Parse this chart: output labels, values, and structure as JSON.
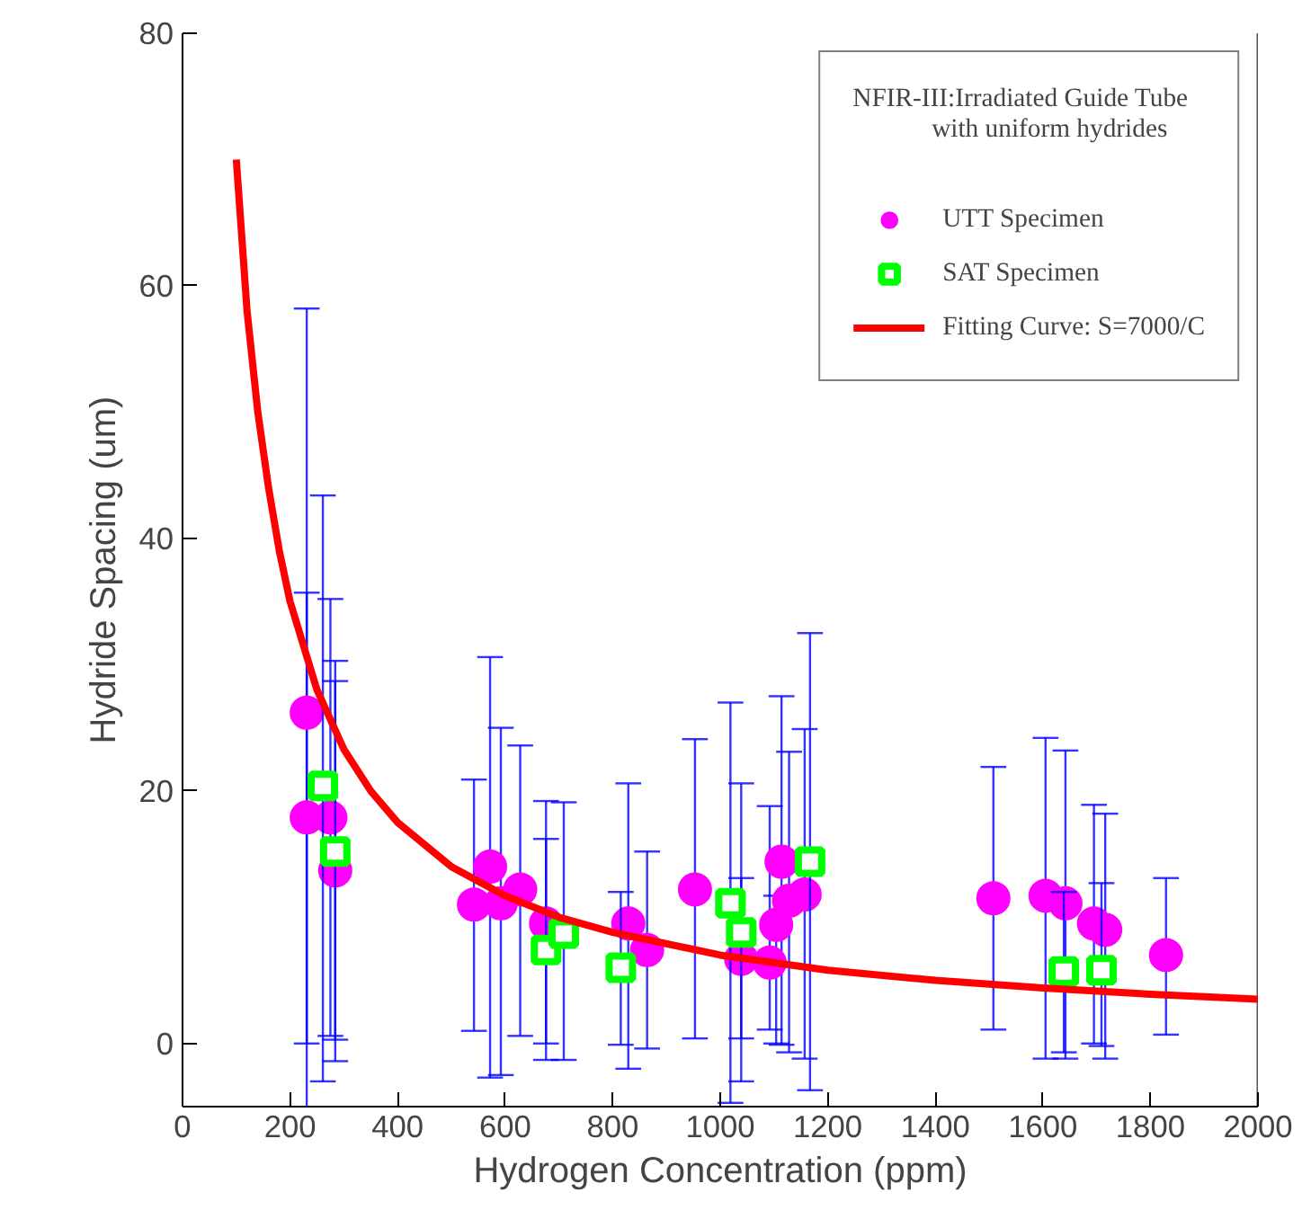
{
  "chart_data": {
    "type": "scatter",
    "xlabel": "Hydrogen Concentration (ppm)",
    "ylabel": "Hydride Spacing (um)",
    "legend_title": "NFIR-III:Irradiated Guide Tube\n            with uniform hydrides",
    "xlim": [
      0,
      2000
    ],
    "xticks": [
      0,
      200,
      400,
      600,
      800,
      1000,
      1200,
      1400,
      1600,
      1800,
      2000
    ],
    "ylim": [
      -5,
      80
    ],
    "yticks": [
      0,
      20,
      40,
      60,
      80
    ],
    "grid": false,
    "legend": "top right",
    "series": [
      {
        "name": "UTT Specimen",
        "type": "scatter",
        "marker": "circle",
        "color": "#ff00ff",
        "x": [
          231,
          231,
          275,
          284,
          542,
          572,
          592,
          628,
          676,
          829,
          864,
          953,
          1039,
          1092,
          1104,
          1114,
          1128,
          1157,
          1508,
          1605,
          1642,
          1695,
          1716,
          1829
        ],
        "values": [
          26.2,
          17.9,
          17.9,
          13.7,
          11.0,
          14.0,
          11.1,
          12.2,
          9.5,
          9.5,
          7.4,
          12.2,
          6.7,
          6.4,
          9.4,
          14.4,
          11.3,
          11.8,
          11.5,
          11.7,
          11.1,
          9.5,
          9.0,
          7.0
        ],
        "errors": [
          [
            0,
            58.2
          ],
          [
            -5.7,
            35.7
          ],
          [
            0.6,
            35.2
          ],
          [
            -1.4,
            30.3
          ],
          [
            1.0,
            20.9
          ],
          [
            -2.7,
            30.6
          ],
          [
            -2.5,
            25.0
          ],
          [
            0.6,
            23.6
          ],
          [
            -1.3,
            19.2
          ],
          [
            -2.0,
            20.6
          ],
          [
            -0.4,
            15.2
          ],
          [
            0.4,
            24.1
          ],
          [
            0.4,
            13.1
          ],
          [
            1.1,
            18.8
          ],
          [
            0,
            11.7
          ],
          [
            -0.1,
            27.5
          ],
          [
            -0.7,
            23.1
          ],
          [
            -1.2,
            24.9
          ],
          [
            1.1,
            21.9
          ],
          [
            -1.2,
            24.2
          ],
          [
            -1.2,
            23.2
          ],
          [
            0,
            18.9
          ],
          [
            -1.2,
            18.2
          ],
          [
            0.7,
            13.1
          ]
        ]
      },
      {
        "name": "SAT Specimen",
        "type": "scatter",
        "marker": "square",
        "color": "#00ff00",
        "x": [
          261,
          284,
          676,
          709,
          815,
          1019,
          1039,
          1167,
          1639,
          1709
        ],
        "values": [
          20.4,
          15.2,
          7.4,
          8.7,
          6.0,
          11.1,
          8.8,
          14.4,
          5.7,
          5.8
        ],
        "errors": [
          [
            -3.0,
            43.4
          ],
          [
            0.3,
            28.7
          ],
          [
            0,
            16.2
          ],
          [
            -1.3,
            19.1
          ],
          [
            -0.1,
            12.0
          ],
          [
            -4.7,
            27.0
          ],
          [
            -3.0,
            20.6
          ],
          [
            -3.7,
            32.5
          ],
          [
            -0.7,
            12.0
          ],
          [
            -0.2,
            12.7
          ]
        ]
      },
      {
        "name": "Fitting Curve: S=7000/C",
        "type": "line",
        "marker": "none",
        "color": "#ff0000",
        "x": [
          100,
          120,
          140,
          160,
          180,
          200,
          250,
          300,
          350,
          400,
          500,
          600,
          700,
          800,
          1000,
          1200,
          1400,
          1600,
          1800,
          2000
        ],
        "values": [
          70,
          58,
          50,
          44,
          39,
          35,
          28,
          23.3,
          20,
          17.5,
          14,
          11.7,
          10,
          8.8,
          7,
          5.8,
          5,
          4.4,
          3.9,
          3.5
        ]
      }
    ]
  }
}
